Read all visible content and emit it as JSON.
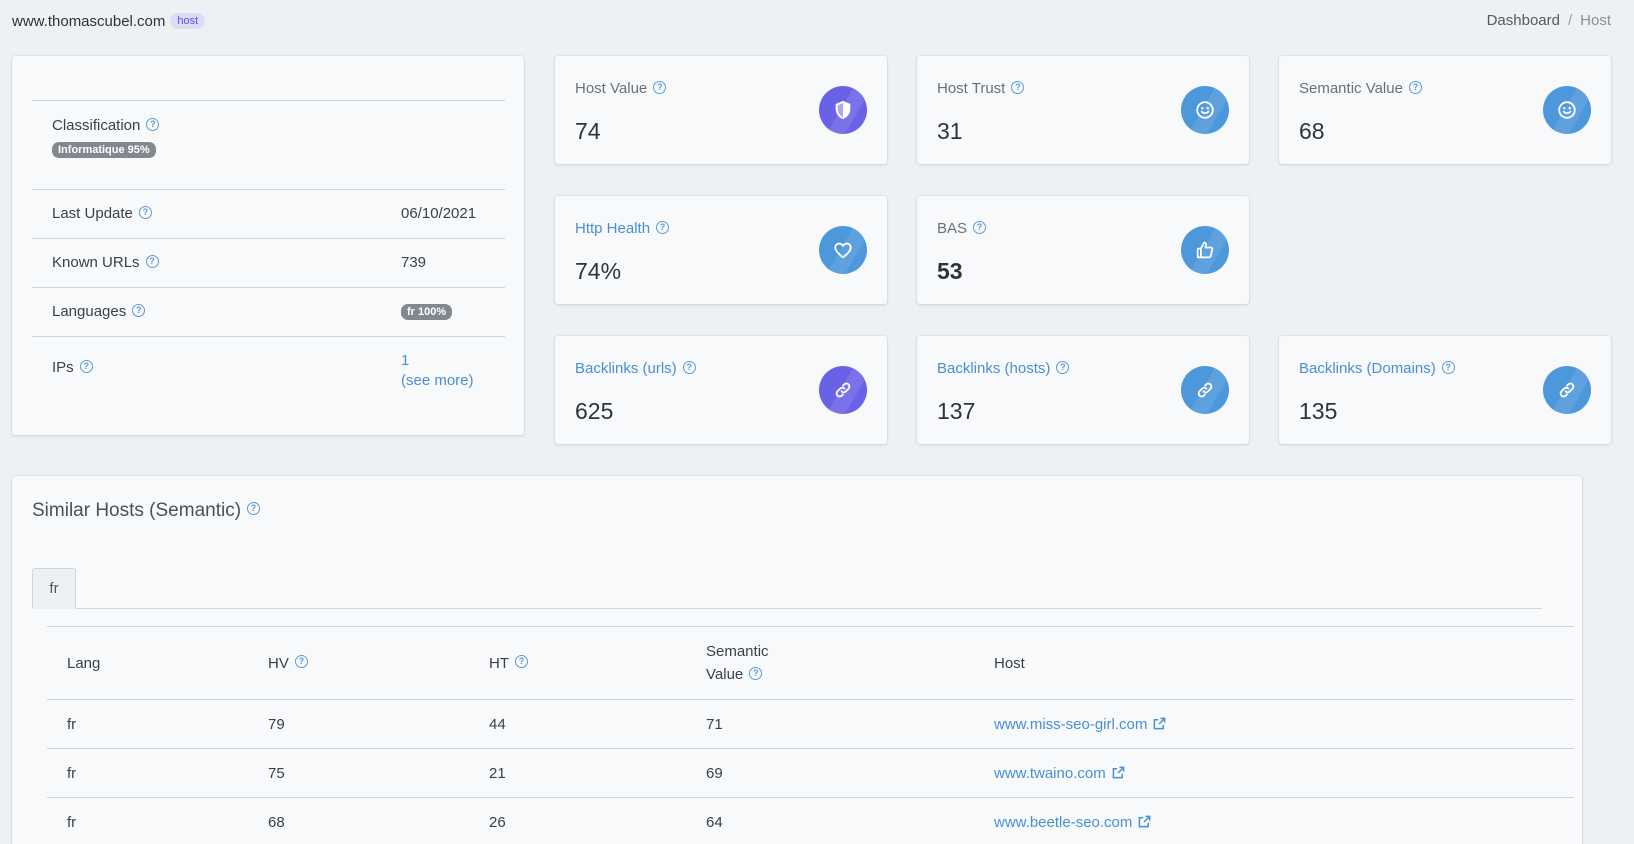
{
  "header": {
    "site": "www.thomascubel.com",
    "badge": "host",
    "breadcrumb": {
      "home": "Dashboard",
      "separator": "/",
      "current": "Host"
    }
  },
  "info": {
    "classification": {
      "label": "Classification",
      "badge": "Informatique 95%"
    },
    "last_update": {
      "label": "Last Update",
      "value": "06/10/2021"
    },
    "known_urls": {
      "label": "Known URLs",
      "value": "739"
    },
    "languages": {
      "label": "Languages",
      "badge": "fr 100%"
    },
    "ips": {
      "label": "IPs",
      "count": "1",
      "more": "(see more)"
    }
  },
  "metrics": {
    "host_value": {
      "label": "Host Value",
      "value": "74",
      "icon": "shield-icon",
      "color": "#6a62e6"
    },
    "host_trust": {
      "label": "Host Trust",
      "value": "31",
      "icon": "smiley-icon",
      "color": "#4d97db"
    },
    "semantic_value": {
      "label": "Semantic Value",
      "value": "68",
      "icon": "smiley-icon",
      "color": "#4d97db"
    },
    "http_health": {
      "label": "Http Health",
      "value": "74%",
      "icon": "heart-icon",
      "color": "#4d97db"
    },
    "bas": {
      "label": "BAS",
      "value": "53",
      "icon": "thumbs-up-icon",
      "color": "#4d97db"
    },
    "backlinks_urls": {
      "label": "Backlinks (urls)",
      "value": "625",
      "icon": "link-icon",
      "color": "#6a62e6"
    },
    "backlinks_hosts": {
      "label": "Backlinks (hosts)",
      "value": "137",
      "icon": "link-icon",
      "color": "#4d97db"
    },
    "backlinks_domains": {
      "label": "Backlinks (Domains)",
      "value": "135",
      "icon": "link-icon",
      "color": "#4d97db"
    }
  },
  "similar": {
    "title": "Similar Hosts (Semantic)",
    "tab": "fr",
    "columns": {
      "lang": "Lang",
      "hv": "HV",
      "ht": "HT",
      "sv_line1": "Semantic",
      "sv_line2": "Value",
      "host": "Host"
    },
    "rows": [
      {
        "lang": "fr",
        "hv": "79",
        "ht": "44",
        "sv": "71",
        "host": "www.miss-seo-girl.com"
      },
      {
        "lang": "fr",
        "hv": "75",
        "ht": "21",
        "sv": "69",
        "host": "www.twaino.com"
      },
      {
        "lang": "fr",
        "hv": "68",
        "ht": "26",
        "sv": "64",
        "host": "www.beetle-seo.com"
      }
    ]
  }
}
